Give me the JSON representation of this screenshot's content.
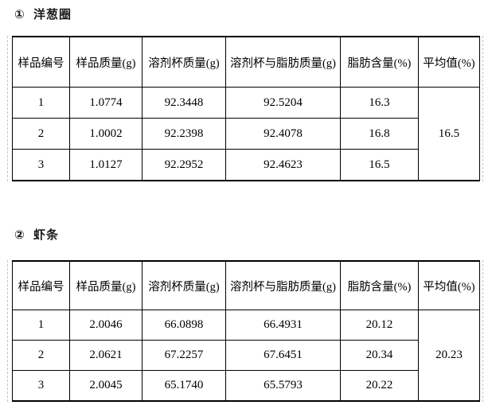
{
  "colors": {
    "background": "#ffffff",
    "text": "#000000",
    "table_border": "#000000",
    "boundary_dash": "#c6c6c6"
  },
  "sections": [
    {
      "title": "①  洋葱圈",
      "table": {
        "headers": [
          "样品编号",
          "样品质量(g)",
          "溶剂杯质量(g)",
          "溶剂杯与脂肪质量(g)",
          "脂肪含量(%)",
          "平均值(%)"
        ],
        "rows": [
          [
            "1",
            "1.0774",
            "92.3448",
            "92.5204",
            "16.3"
          ],
          [
            "2",
            "1.0002",
            "92.2398",
            "92.4078",
            "16.8"
          ],
          [
            "3",
            "1.0127",
            "92.2952",
            "92.4623",
            "16.5"
          ]
        ],
        "average": "16.5"
      }
    },
    {
      "title": "②  虾条",
      "table": {
        "headers": [
          "样品编号",
          "样品质量(g)",
          "溶剂杯质量(g)",
          "溶剂杯与脂肪质量(g)",
          "脂肪含量(%)",
          "平均值(%)"
        ],
        "rows": [
          [
            "1",
            "2.0046",
            "66.0898",
            "66.4931",
            "20.12"
          ],
          [
            "2",
            "2.0621",
            "67.2257",
            "67.6451",
            "20.34"
          ],
          [
            "3",
            "2.0045",
            "65.1740",
            "65.5793",
            "20.22"
          ]
        ],
        "average": "20.23"
      }
    }
  ]
}
